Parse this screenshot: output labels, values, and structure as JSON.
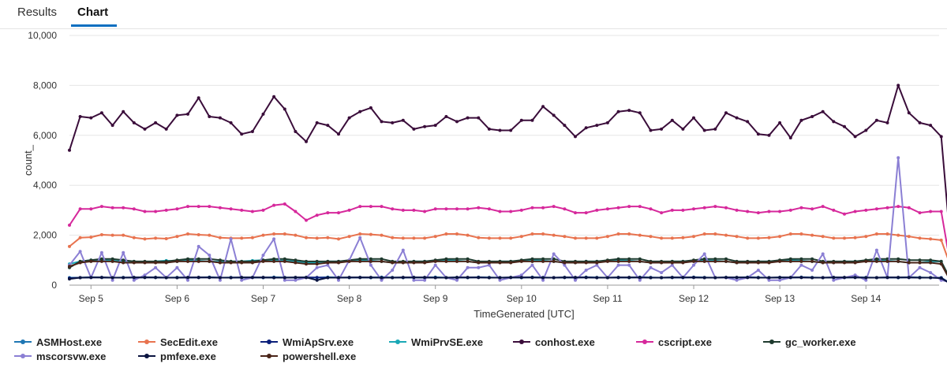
{
  "tabs": [
    {
      "label": "Results",
      "active": false
    },
    {
      "label": "Chart",
      "active": true
    }
  ],
  "chart_data": {
    "type": "line",
    "title": "",
    "xlabel": "TimeGenerated [UTC]",
    "ylabel": "count_",
    "ylim": [
      0,
      10000
    ],
    "yticks": [
      0,
      2000,
      4000,
      6000,
      8000,
      10000
    ],
    "ytick_labels": [
      "0",
      "2,000",
      "4,000",
      "6,000",
      "8,000",
      "10,000"
    ],
    "x_start_day": 4.75,
    "x_step_days": 0.125,
    "xticks": [
      5,
      6,
      7,
      8,
      9,
      10,
      11,
      12,
      13,
      14
    ],
    "xtick_labels": [
      "Sep 5",
      "Sep 6",
      "Sep 7",
      "Sep 8",
      "Sep 9",
      "Sep 10",
      "Sep 11",
      "Sep 12",
      "Sep 13",
      "Sep 14"
    ],
    "legend_position": "bottom",
    "grid": true,
    "series": [
      {
        "name": "ASMHost.exe",
        "color": "#1f77b4",
        "values": [
          300,
          300,
          320,
          310,
          300,
          310,
          300,
          320,
          310,
          300,
          310,
          300,
          310,
          320,
          300,
          310,
          300,
          310,
          300,
          320,
          310,
          300,
          310,
          300,
          320,
          310,
          300,
          310,
          300,
          320,
          310,
          300,
          310,
          300,
          320,
          300,
          310,
          300,
          320,
          310,
          300,
          310,
          300,
          320,
          310,
          300,
          310,
          300,
          320,
          310,
          300,
          310,
          300,
          320,
          310,
          300,
          310,
          300,
          320,
          310,
          300,
          310,
          300,
          320,
          310,
          300,
          310,
          300,
          320,
          310,
          300,
          310,
          300,
          320,
          310,
          300,
          310,
          300,
          320,
          310,
          300,
          300,
          30
        ]
      },
      {
        "name": "SecEdit.exe",
        "color": "#e8734f",
        "values": [
          1550,
          1900,
          1920,
          2020,
          2000,
          2000,
          1900,
          1850,
          1880,
          1860,
          1950,
          2050,
          2020,
          2000,
          1900,
          1880,
          1880,
          1900,
          2000,
          2050,
          2050,
          2000,
          1900,
          1880,
          1900,
          1850,
          1950,
          2050,
          2030,
          2000,
          1900,
          1880,
          1880,
          1880,
          1950,
          2050,
          2050,
          2000,
          1900,
          1880,
          1880,
          1880,
          1950,
          2050,
          2050,
          2000,
          1950,
          1880,
          1880,
          1880,
          1950,
          2050,
          2050,
          2000,
          1950,
          1880,
          1880,
          1900,
          1950,
          2050,
          2050,
          2000,
          1950,
          1880,
          1880,
          1900,
          1950,
          2050,
          2050,
          2000,
          1950,
          1880,
          1880,
          1900,
          1950,
          2050,
          2050,
          2000,
          1950,
          1880,
          1850,
          1800,
          600
        ]
      },
      {
        "name": "WmiApSrv.exe",
        "color": "#0b1f7a",
        "values": [
          280,
          300,
          310,
          310,
          300,
          300,
          310,
          310,
          310,
          300,
          300,
          310,
          310,
          310,
          300,
          300,
          310,
          310,
          310,
          300,
          300,
          310,
          310,
          310,
          300,
          300,
          310,
          310,
          310,
          300,
          300,
          310,
          310,
          310,
          300,
          300,
          310,
          310,
          310,
          300,
          300,
          310,
          310,
          310,
          300,
          300,
          310,
          310,
          310,
          300,
          300,
          310,
          310,
          310,
          300,
          300,
          310,
          310,
          310,
          300,
          300,
          310,
          310,
          310,
          300,
          300,
          310,
          310,
          310,
          300,
          300,
          310,
          310,
          310,
          300,
          300,
          310,
          310,
          310,
          300,
          300,
          290,
          30
        ]
      },
      {
        "name": "WmiPrvSE.exe",
        "color": "#1aa8b6",
        "values": [
          850,
          950,
          1000,
          1000,
          980,
          950,
          950,
          920,
          950,
          980,
          950,
          1000,
          980,
          950,
          940,
          950,
          950,
          980,
          1000,
          1000,
          980,
          950,
          900,
          900,
          950,
          950,
          980,
          1000,
          980,
          950,
          900,
          900,
          950,
          950,
          980,
          1000,
          980,
          950,
          900,
          900,
          950,
          950,
          980,
          1000,
          980,
          950,
          900,
          900,
          950,
          950,
          980,
          1000,
          980,
          950,
          900,
          900,
          950,
          950,
          980,
          1000,
          980,
          950,
          900,
          900,
          950,
          950,
          980,
          1000,
          980,
          950,
          900,
          900,
          950,
          950,
          980,
          1000,
          980,
          950,
          900,
          900,
          950,
          950,
          100
        ]
      },
      {
        "name": "conhost.exe",
        "color": "#3a0d3a",
        "values": [
          5400,
          6750,
          6700,
          6900,
          6400,
          6950,
          6500,
          6250,
          6500,
          6250,
          6800,
          6850,
          7500,
          6750,
          6700,
          6500,
          6050,
          6150,
          6850,
          7550,
          7050,
          6150,
          5750,
          6500,
          6400,
          6050,
          6700,
          6950,
          7100,
          6550,
          6500,
          6600,
          6250,
          6350,
          6400,
          6750,
          6550,
          6700,
          6700,
          6250,
          6200,
          6200,
          6600,
          6600,
          7150,
          6800,
          6400,
          5950,
          6300,
          6400,
          6500,
          6950,
          7000,
          6900,
          6200,
          6250,
          6600,
          6250,
          6700,
          6200,
          6250,
          6900,
          6700,
          6550,
          6050,
          6000,
          6500,
          5900,
          6600,
          6750,
          6950,
          6550,
          6350,
          5950,
          6200,
          6600,
          6500,
          8000,
          6900,
          6500,
          6400,
          5950,
          900
        ]
      },
      {
        "name": "cscript.exe",
        "color": "#d6289b",
        "values": [
          2400,
          3050,
          3050,
          3150,
          3100,
          3100,
          3050,
          2950,
          2950,
          3000,
          3050,
          3150,
          3150,
          3150,
          3100,
          3050,
          3000,
          2950,
          3000,
          3200,
          3250,
          2950,
          2600,
          2800,
          2900,
          2900,
          3000,
          3150,
          3150,
          3150,
          3050,
          3000,
          3000,
          2950,
          3050,
          3050,
          3050,
          3050,
          3100,
          3050,
          2950,
          2950,
          3000,
          3100,
          3100,
          3150,
          3050,
          2900,
          2900,
          3000,
          3050,
          3100,
          3150,
          3150,
          3050,
          2900,
          3000,
          3000,
          3050,
          3100,
          3150,
          3100,
          3000,
          2950,
          2900,
          2950,
          2950,
          3000,
          3100,
          3050,
          3150,
          3000,
          2850,
          2950,
          3000,
          3050,
          3100,
          3150,
          3100,
          2900,
          2950,
          2950,
          450
        ]
      },
      {
        "name": "gc_worker.exe",
        "color": "#1e3a2e",
        "values": [
          700,
          950,
          1000,
          1050,
          1050,
          1000,
          950,
          950,
          950,
          950,
          1000,
          1050,
          1050,
          1050,
          1000,
          950,
          950,
          950,
          1000,
          1050,
          1050,
          1000,
          950,
          950,
          950,
          950,
          1000,
          1050,
          1050,
          1050,
          950,
          950,
          950,
          950,
          1000,
          1050,
          1050,
          1050,
          950,
          950,
          950,
          950,
          1000,
          1050,
          1050,
          1050,
          950,
          950,
          950,
          950,
          1000,
          1050,
          1050,
          1050,
          950,
          950,
          950,
          950,
          1000,
          1050,
          1050,
          1050,
          950,
          950,
          950,
          950,
          1000,
          1050,
          1050,
          1050,
          950,
          950,
          950,
          950,
          1000,
          1050,
          1050,
          1050,
          1000,
          1000,
          1000,
          950,
          100
        ]
      },
      {
        "name": "mscorsvw.exe",
        "color": "#8b7fd4",
        "values": [
          800,
          1350,
          300,
          1300,
          200,
          1300,
          200,
          400,
          700,
          300,
          700,
          200,
          1550,
          1200,
          200,
          1850,
          200,
          300,
          1200,
          1850,
          200,
          200,
          300,
          700,
          800,
          200,
          1000,
          1900,
          800,
          200,
          600,
          1400,
          200,
          200,
          800,
          300,
          200,
          700,
          700,
          800,
          200,
          300,
          400,
          800,
          200,
          1250,
          800,
          200,
          600,
          800,
          300,
          800,
          800,
          200,
          700,
          500,
          800,
          300,
          800,
          1250,
          300,
          300,
          200,
          300,
          600,
          200,
          200,
          300,
          800,
          600,
          1250,
          200,
          300,
          400,
          200,
          1400,
          300,
          5100,
          300,
          700,
          500,
          200,
          100
        ]
      },
      {
        "name": "pmfexe.exe",
        "color": "#0a1440",
        "values": [
          250,
          300,
          310,
          310,
          300,
          300,
          310,
          310,
          310,
          300,
          300,
          310,
          310,
          310,
          300,
          300,
          310,
          310,
          310,
          300,
          300,
          310,
          310,
          200,
          300,
          300,
          310,
          310,
          310,
          300,
          300,
          310,
          310,
          310,
          300,
          300,
          310,
          310,
          310,
          300,
          300,
          310,
          310,
          310,
          300,
          300,
          310,
          310,
          310,
          300,
          300,
          310,
          310,
          310,
          300,
          300,
          310,
          310,
          310,
          300,
          300,
          310,
          310,
          310,
          300,
          300,
          310,
          310,
          310,
          300,
          300,
          310,
          310,
          310,
          300,
          300,
          310,
          310,
          310,
          300,
          300,
          280,
          20
        ]
      },
      {
        "name": "powershell.exe",
        "color": "#4a2418",
        "values": [
          750,
          900,
          950,
          950,
          950,
          900,
          900,
          900,
          900,
          900,
          950,
          950,
          950,
          950,
          900,
          900,
          900,
          900,
          950,
          950,
          950,
          900,
          850,
          850,
          900,
          900,
          950,
          950,
          950,
          950,
          900,
          900,
          900,
          900,
          950,
          950,
          950,
          950,
          900,
          900,
          900,
          900,
          950,
          950,
          950,
          950,
          900,
          900,
          900,
          900,
          950,
          950,
          950,
          950,
          900,
          900,
          900,
          900,
          950,
          950,
          950,
          950,
          900,
          900,
          900,
          900,
          950,
          950,
          950,
          950,
          900,
          900,
          900,
          900,
          950,
          950,
          950,
          950,
          900,
          900,
          900,
          850,
          50
        ]
      }
    ]
  }
}
